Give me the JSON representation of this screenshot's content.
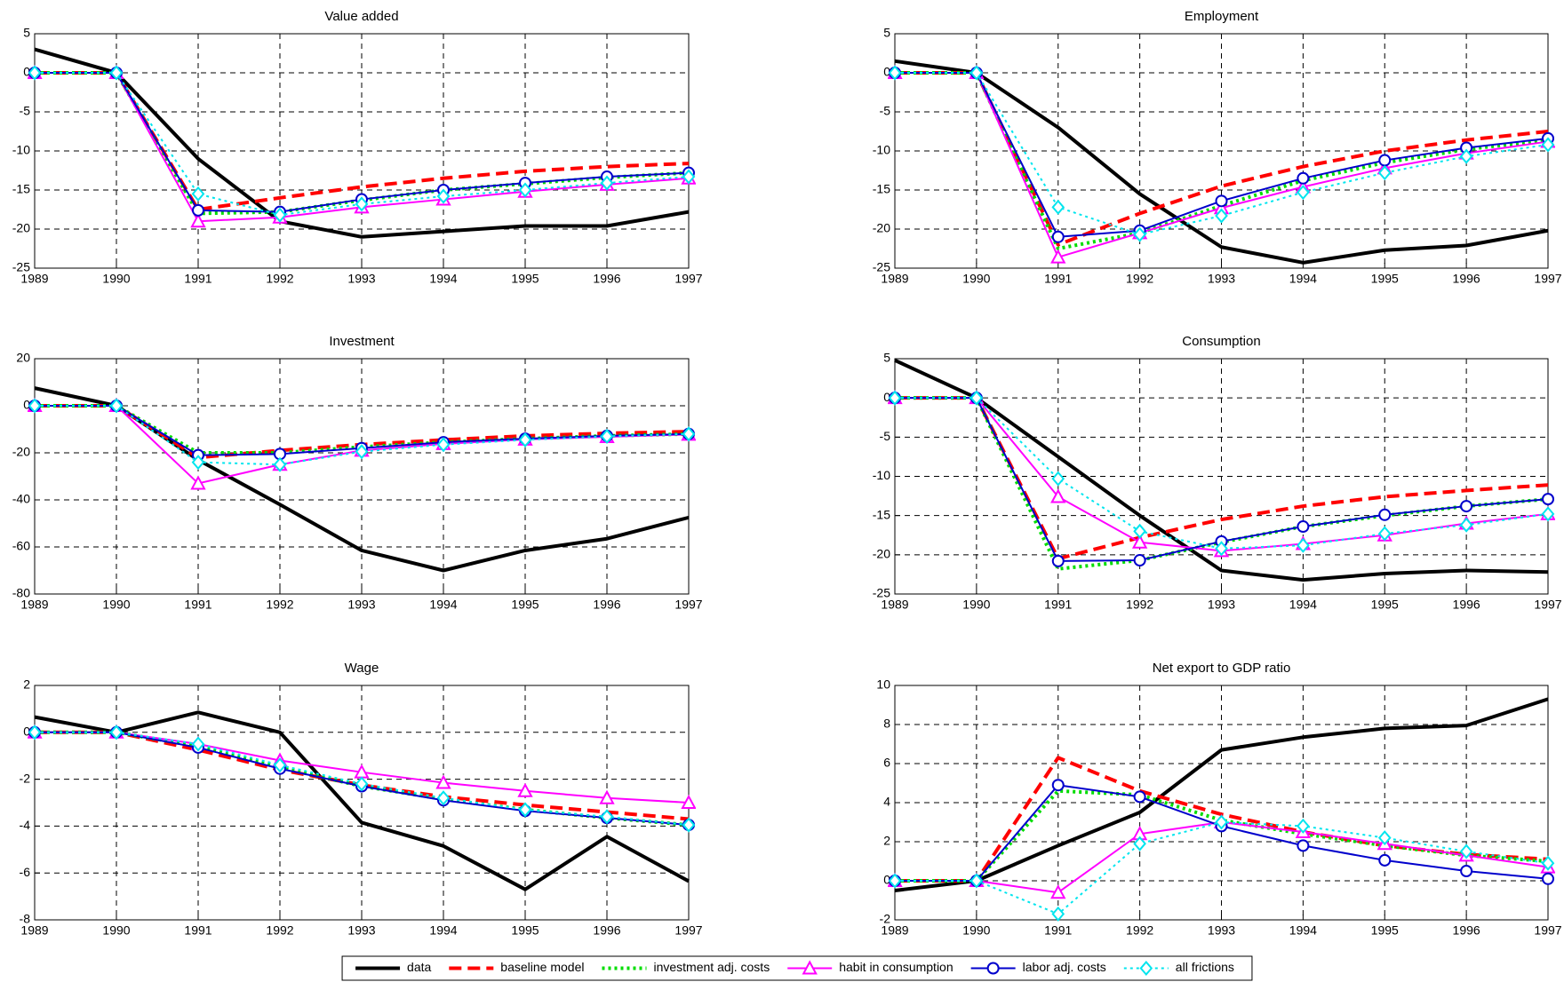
{
  "chart_data": [
    {
      "type": "line",
      "title": "Value added",
      "x": [
        1989,
        1990,
        1991,
        1992,
        1993,
        1994,
        1995,
        1996,
        1997
      ],
      "xlim": [
        1989,
        1997
      ],
      "xticks": [
        1989,
        1990,
        1991,
        1992,
        1993,
        1994,
        1995,
        1996,
        1997
      ],
      "ylim": [
        -25,
        5
      ],
      "yticks": [
        -25,
        -20,
        -15,
        -10,
        -5,
        0,
        5
      ],
      "grid": true,
      "legend": "bottom",
      "series": [
        {
          "name": "data",
          "color": "#000000",
          "dash": "solid",
          "marker": "none",
          "values": [
            3,
            0,
            -11,
            -19,
            -21,
            -20.3,
            -19.6,
            -19.6,
            -17.8
          ]
        },
        {
          "name": "baseline model",
          "color": "#ff0000",
          "dash": "dashed",
          "marker": "none",
          "values": [
            0,
            0,
            -17.5,
            -16,
            -14.6,
            -13.5,
            -12.6,
            -12,
            -11.6
          ]
        },
        {
          "name": "investment adj. costs",
          "color": "#00dd00",
          "dash": "dotted",
          "marker": "none",
          "values": [
            0,
            0,
            -18,
            -17.8,
            -16.3,
            -15,
            -14.2,
            -13.4,
            -12.8
          ]
        },
        {
          "name": "habit in consumption",
          "color": "#ff00ff",
          "dash": "solid",
          "marker": "triangle",
          "values": [
            0,
            0,
            -19,
            -18.5,
            -17.2,
            -16.2,
            -15.2,
            -14.3,
            -13.5
          ]
        },
        {
          "name": "labor adj. costs",
          "color": "#0000cc",
          "dash": "solid",
          "marker": "circle",
          "values": [
            0,
            0,
            -17.6,
            -17.8,
            -16.2,
            -15,
            -14.1,
            -13.3,
            -12.8
          ]
        },
        {
          "name": "all frictions",
          "color": "#00e5ee",
          "dash": "dotted",
          "marker": "diamond",
          "values": [
            0,
            0,
            -15.5,
            -18.2,
            -16.8,
            -15.8,
            -15,
            -14.1,
            -13.3
          ]
        }
      ]
    },
    {
      "type": "line",
      "title": "Employment",
      "x": [
        1989,
        1990,
        1991,
        1992,
        1993,
        1994,
        1995,
        1996,
        1997
      ],
      "xlim": [
        1989,
        1997
      ],
      "xticks": [
        1989,
        1990,
        1991,
        1992,
        1993,
        1994,
        1995,
        1996,
        1997
      ],
      "ylim": [
        -25,
        5
      ],
      "yticks": [
        -25,
        -20,
        -15,
        -10,
        -5,
        0,
        5
      ],
      "grid": true,
      "series": [
        {
          "values": [
            1.5,
            0,
            -7,
            -15.5,
            -22.3,
            -24.3,
            -22.7,
            -22.1,
            -20.2
          ]
        },
        {
          "values": [
            0,
            0,
            -22,
            -18,
            -14.5,
            -12,
            -10,
            -8.6,
            -7.5
          ]
        },
        {
          "values": [
            0,
            0,
            -22.5,
            -20.5,
            -17,
            -13.8,
            -11.5,
            -9.8,
            -8.6
          ]
        },
        {
          "values": [
            0,
            0,
            -23.6,
            -20.5,
            -17.3,
            -14.6,
            -12.2,
            -10.3,
            -8.8
          ]
        },
        {
          "values": [
            0,
            0,
            -21,
            -20.2,
            -16.4,
            -13.5,
            -11.2,
            -9.6,
            -8.4
          ]
        },
        {
          "values": [
            0,
            0,
            -17.2,
            -20.7,
            -18.3,
            -15.3,
            -12.8,
            -10.7,
            -9.2
          ]
        }
      ]
    },
    {
      "type": "line",
      "title": "Investment",
      "x": [
        1989,
        1990,
        1991,
        1992,
        1993,
        1994,
        1995,
        1996,
        1997
      ],
      "xlim": [
        1989,
        1997
      ],
      "xticks": [
        1989,
        1990,
        1991,
        1992,
        1993,
        1994,
        1995,
        1996,
        1997
      ],
      "ylim": [
        -80,
        20
      ],
      "yticks": [
        -80,
        -60,
        -40,
        -20,
        0,
        20
      ],
      "grid": true,
      "series": [
        {
          "values": [
            7.5,
            0,
            -23,
            -42,
            -61.5,
            -70,
            -61.5,
            -56.5,
            -47.5
          ]
        },
        {
          "values": [
            0,
            0,
            -22,
            -19,
            -16.5,
            -14.5,
            -12.8,
            -11.7,
            -11
          ]
        },
        {
          "values": [
            0,
            0,
            -20,
            -20,
            -17.5,
            -15.5,
            -14,
            -12.8,
            -12
          ]
        },
        {
          "values": [
            0,
            0,
            -33,
            -25,
            -19,
            -16.2,
            -14.3,
            -13.2,
            -12.2
          ]
        },
        {
          "values": [
            0,
            0,
            -21,
            -20.5,
            -18,
            -15.5,
            -14,
            -12.8,
            -12
          ]
        },
        {
          "values": [
            0,
            0,
            -24,
            -25,
            -19.5,
            -16.5,
            -14.5,
            -13,
            -12
          ]
        }
      ]
    },
    {
      "type": "line",
      "title": "Consumption",
      "x": [
        1989,
        1990,
        1991,
        1992,
        1993,
        1994,
        1995,
        1996,
        1997
      ],
      "xlim": [
        1989,
        1997
      ],
      "xticks": [
        1989,
        1990,
        1991,
        1992,
        1993,
        1994,
        1995,
        1996,
        1997
      ],
      "ylim": [
        -25,
        5
      ],
      "yticks": [
        -25,
        -20,
        -15,
        -10,
        -5,
        0,
        5
      ],
      "grid": true,
      "series": [
        {
          "values": [
            4.8,
            0,
            -7.5,
            -15,
            -22,
            -23.2,
            -22.4,
            -22,
            -22.2
          ]
        },
        {
          "values": [
            0,
            0,
            -20.5,
            -17.8,
            -15.5,
            -13.8,
            -12.6,
            -11.8,
            -11.1
          ]
        },
        {
          "values": [
            0,
            0,
            -21.8,
            -20.7,
            -18.4,
            -16.4,
            -15,
            -13.8,
            -12.9
          ]
        },
        {
          "values": [
            0,
            0,
            -12.6,
            -18.4,
            -19.5,
            -18.6,
            -17.5,
            -16,
            -14.8
          ]
        },
        {
          "values": [
            0,
            0,
            -20.8,
            -20.7,
            -18.3,
            -16.4,
            -14.9,
            -13.8,
            -12.9
          ]
        },
        {
          "values": [
            0,
            0,
            -10.3,
            -17,
            -19.2,
            -18.8,
            -17.3,
            -16.2,
            -14.8
          ]
        }
      ]
    },
    {
      "type": "line",
      "title": "Wage",
      "x": [
        1989,
        1990,
        1991,
        1992,
        1993,
        1994,
        1995,
        1996,
        1997
      ],
      "xlim": [
        1989,
        1997
      ],
      "xticks": [
        1989,
        1990,
        1991,
        1992,
        1993,
        1994,
        1995,
        1996,
        1997
      ],
      "ylim": [
        -8,
        2
      ],
      "yticks": [
        -8,
        -6,
        -4,
        -2,
        0,
        2
      ],
      "grid": true,
      "series": [
        {
          "values": [
            0.65,
            0,
            0.85,
            0,
            -3.85,
            -4.85,
            -6.7,
            -4.45,
            -6.35
          ]
        },
        {
          "values": [
            0,
            0,
            -0.75,
            -1.6,
            -2.25,
            -2.75,
            -3.1,
            -3.4,
            -3.7
          ]
        },
        {
          "values": [
            0,
            0,
            -0.6,
            -1.5,
            -2.3,
            -2.85,
            -3.3,
            -3.65,
            -3.95
          ]
        },
        {
          "values": [
            0,
            0,
            -0.5,
            -1.2,
            -1.7,
            -2.15,
            -2.5,
            -2.8,
            -3.0
          ]
        },
        {
          "values": [
            0,
            0,
            -0.65,
            -1.55,
            -2.3,
            -2.9,
            -3.35,
            -3.65,
            -3.95
          ]
        },
        {
          "values": [
            0,
            0,
            -0.5,
            -1.4,
            -2.2,
            -2.8,
            -3.3,
            -3.6,
            -3.95
          ]
        }
      ]
    },
    {
      "type": "line",
      "title": "Net export to GDP ratio",
      "x": [
        1989,
        1990,
        1991,
        1992,
        1993,
        1994,
        1995,
        1996,
        1997
      ],
      "xlim": [
        1989,
        1997
      ],
      "xticks": [
        1989,
        1990,
        1991,
        1992,
        1993,
        1994,
        1995,
        1996,
        1997
      ],
      "ylim": [
        -2,
        10
      ],
      "yticks": [
        -2,
        0,
        2,
        4,
        6,
        8,
        10
      ],
      "grid": true,
      "series": [
        {
          "values": [
            -0.5,
            0,
            1.8,
            3.5,
            6.7,
            7.35,
            7.8,
            7.95,
            9.3
          ]
        },
        {
          "values": [
            0,
            0,
            6.3,
            4.6,
            3.4,
            2.5,
            1.8,
            1.35,
            1.1
          ]
        },
        {
          "values": [
            0,
            0,
            4.6,
            4.4,
            3.1,
            2.4,
            1.8,
            1.3,
            1.0
          ]
        },
        {
          "values": [
            0,
            0,
            -0.6,
            2.4,
            3,
            2.5,
            1.9,
            1.3,
            0.7
          ]
        },
        {
          "values": [
            0,
            0,
            4.9,
            4.3,
            2.8,
            1.8,
            1.05,
            0.5,
            0.1
          ]
        },
        {
          "values": [
            0,
            0,
            -1.7,
            1.9,
            3,
            2.8,
            2.2,
            1.5,
            0.9
          ]
        }
      ]
    }
  ]
}
